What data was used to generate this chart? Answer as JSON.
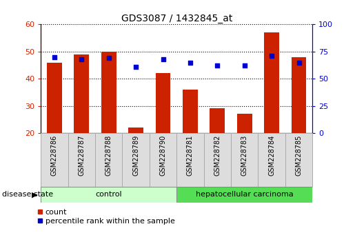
{
  "title": "GDS3087 / 1432845_at",
  "samples": [
    "GSM228786",
    "GSM228787",
    "GSM228788",
    "GSM228789",
    "GSM228790",
    "GSM228781",
    "GSM228782",
    "GSM228783",
    "GSM228784",
    "GSM228785"
  ],
  "count_values": [
    46,
    49,
    50,
    22,
    42,
    36,
    29,
    27,
    57,
    48
  ],
  "percentile_values": [
    70,
    68,
    69,
    61,
    68,
    65,
    62,
    62,
    71,
    65
  ],
  "ylim_left": [
    20,
    60
  ],
  "ylim_right": [
    0,
    100
  ],
  "y_ticks_left": [
    20,
    30,
    40,
    50,
    60
  ],
  "y_ticks_right": [
    0,
    25,
    50,
    75,
    100
  ],
  "bar_color": "#cc2200",
  "dot_color": "#0000cc",
  "bar_width": 0.55,
  "groups": [
    {
      "label": "control",
      "indices": [
        0,
        1,
        2,
        3,
        4
      ],
      "color_light": "#ddffdd",
      "color_dark": "#88dd88"
    },
    {
      "label": "hepatocellular carcinoma",
      "indices": [
        5,
        6,
        7,
        8,
        9
      ],
      "color_light": "#55cc55",
      "color_dark": "#33aa33"
    }
  ],
  "group_label_prefix": "disease state",
  "legend_count_label": "count",
  "legend_pct_label": "percentile rank within the sample",
  "bg_color": "#ffffff",
  "tick_label_color_left": "#cc2200",
  "tick_label_color_right": "#0000cc",
  "xtick_bg_color": "#dddddd",
  "xtick_border_color": "#aaaaaa"
}
